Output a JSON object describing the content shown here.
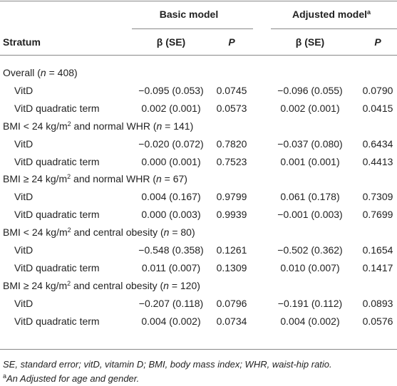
{
  "header": {
    "stratum": [
      {
        "text": "Stratum"
      }
    ],
    "groups": [
      [
        {
          "text": "Basic model"
        }
      ],
      [
        {
          "text": "Adjusted model"
        },
        {
          "text": "a",
          "style": "sup"
        }
      ]
    ],
    "cols": [
      [
        {
          "text": "β (SE)"
        }
      ],
      [
        {
          "text": "P",
          "style": "italic"
        }
      ],
      [
        {
          "text": "β (SE)"
        }
      ],
      [
        {
          "text": "P",
          "style": "italic"
        }
      ]
    ]
  },
  "sections": [
    {
      "label": [
        {
          "text": "Overall ("
        },
        {
          "text": "n",
          "style": "italic"
        },
        {
          "text": " = 408)"
        }
      ],
      "rows": [
        {
          "label": "VitD",
          "cells": [
            "−0.095 (0.053)",
            "0.0745",
            "−0.096 (0.055)",
            "0.0790"
          ]
        },
        {
          "label": "VitD quadratic term",
          "cells": [
            "0.002 (0.001)",
            "0.0573",
            "0.002 (0.001)",
            "0.0415"
          ]
        }
      ]
    },
    {
      "label": [
        {
          "text": "BMI < 24 kg/m"
        },
        {
          "text": "2",
          "style": "sup"
        },
        {
          "text": " and normal WHR ("
        },
        {
          "text": "n",
          "style": "italic"
        },
        {
          "text": " = 141)"
        }
      ],
      "rows": [
        {
          "label": "VitD",
          "cells": [
            "−0.020 (0.072)",
            "0.7820",
            "−0.037 (0.080)",
            "0.6434"
          ]
        },
        {
          "label": "VitD quadratic term",
          "cells": [
            "0.000 (0.001)",
            "0.7523",
            "0.001 (0.001)",
            "0.4413"
          ]
        }
      ]
    },
    {
      "label": [
        {
          "text": "BMI ≥ 24 kg/m"
        },
        {
          "text": "2",
          "style": "sup"
        },
        {
          "text": " and normal WHR ("
        },
        {
          "text": "n",
          "style": "italic"
        },
        {
          "text": " = 67)"
        }
      ],
      "rows": [
        {
          "label": "VitD",
          "cells": [
            "0.004 (0.167)",
            "0.9799",
            "0.061 (0.178)",
            "0.7309"
          ]
        },
        {
          "label": "VitD quadratic term",
          "cells": [
            "0.000 (0.003)",
            "0.9939",
            "−0.001 (0.003)",
            "0.7699"
          ]
        }
      ]
    },
    {
      "label": [
        {
          "text": "BMI < 24 kg/m"
        },
        {
          "text": "2",
          "style": "sup"
        },
        {
          "text": " and central obesity ("
        },
        {
          "text": "n",
          "style": "italic"
        },
        {
          "text": " = 80)"
        }
      ],
      "rows": [
        {
          "label": "VitD",
          "cells": [
            "−0.548 (0.358)",
            "0.1261",
            "−0.502 (0.362)",
            "0.1654"
          ]
        },
        {
          "label": "VitD quadratic term",
          "cells": [
            "0.011 (0.007)",
            "0.1309",
            "0.010 (0.007)",
            "0.1417"
          ]
        }
      ]
    },
    {
      "label": [
        {
          "text": "BMI ≥ 24 kg/m"
        },
        {
          "text": "2",
          "style": "sup"
        },
        {
          "text": " and central obesity ("
        },
        {
          "text": "n",
          "style": "italic"
        },
        {
          "text": " = 120)"
        }
      ],
      "rows": [
        {
          "label": "VitD",
          "cells": [
            "−0.207 (0.118)",
            "0.0796",
            "−0.191 (0.112)",
            "0.0893"
          ]
        },
        {
          "label": "VitD quadratic term",
          "cells": [
            "0.004 (0.002)",
            "0.0734",
            "0.004 (0.002)",
            "0.0576"
          ]
        }
      ]
    }
  ],
  "notes": [
    [
      {
        "text": "SE, standard error; vitD, vitamin D; BMI, body mass index; WHR, waist-hip ratio.",
        "style": "italic"
      }
    ],
    [
      {
        "text": "a",
        "style": "sup"
      },
      {
        "text": "An Adjusted for age and gender.",
        "style": "italic"
      }
    ]
  ]
}
